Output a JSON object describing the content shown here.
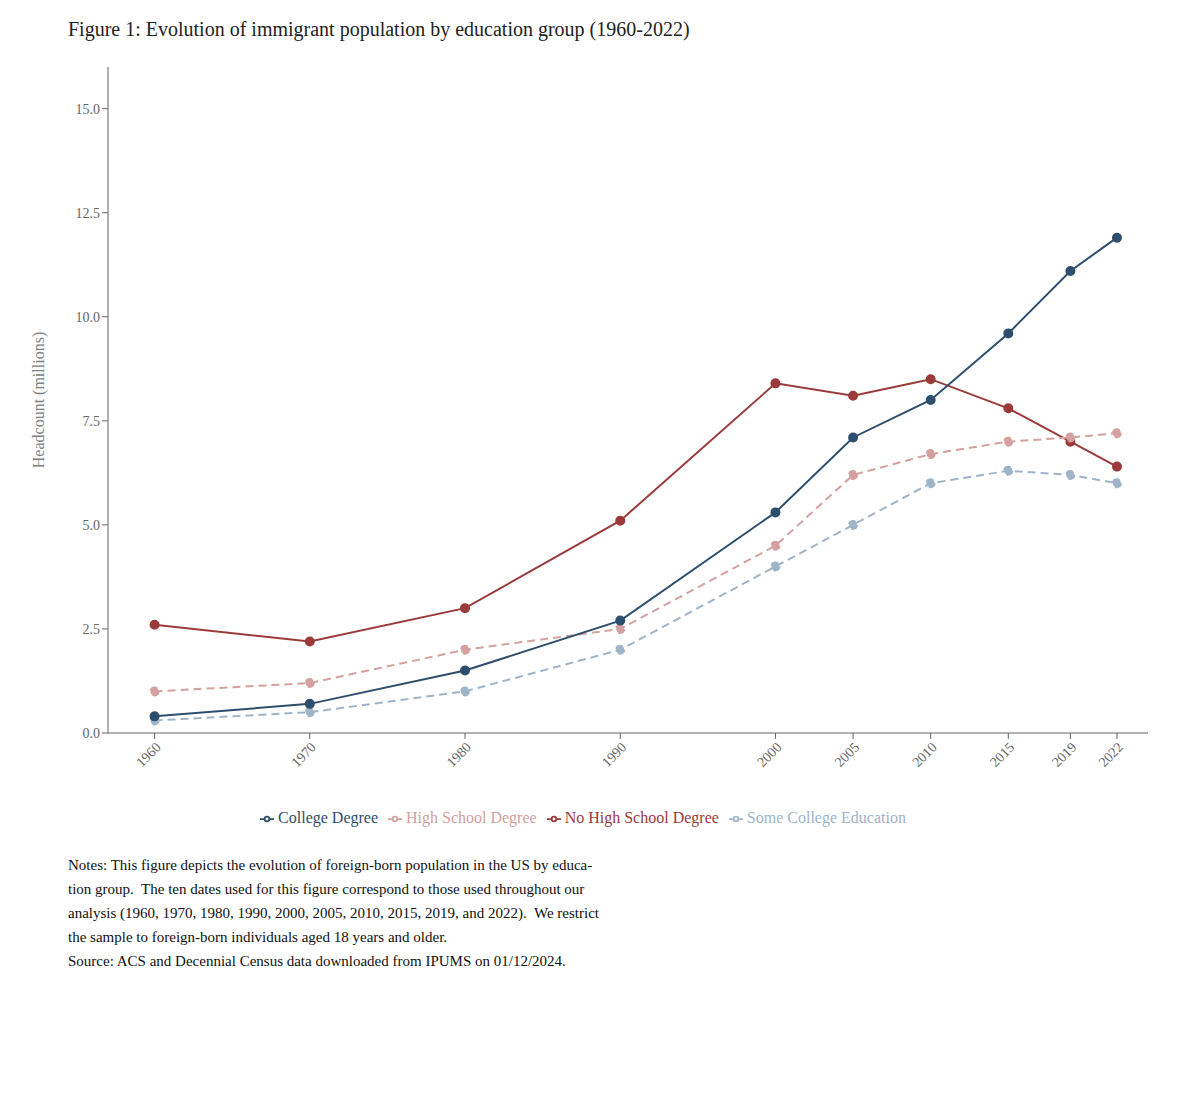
{
  "chart_data": {
    "type": "line",
    "title": "Figure 1: Evolution of immigrant population by education group (1960-2022)",
    "x": [
      1960,
      1970,
      1980,
      1990,
      2000,
      2005,
      2010,
      2015,
      2019,
      2022
    ],
    "xlim": [
      1957,
      2024
    ],
    "xticks": [
      1960,
      1970,
      1980,
      1990,
      2000,
      2005,
      2010,
      2015,
      2019,
      2022
    ],
    "y_label": "Headcount (millions)",
    "ylim": [
      0,
      16
    ],
    "yticks": [
      {
        "value": 0,
        "label": "0.0"
      },
      2.5,
      {
        "value": 5,
        "label": "5.0"
      },
      7.5,
      {
        "value": 10,
        "label": "10.0"
      },
      12.5,
      {
        "value": 15,
        "label": "15.0"
      }
    ],
    "grid": false,
    "legend": "bottom",
    "series": [
      {
        "name": "No High School Degree",
        "color": "#9B3A3A",
        "marker": "circle",
        "line_style": "solid",
        "values": [
          2.6,
          2.2,
          3.0,
          5.1,
          8.4,
          8.1,
          8.5,
          7.8,
          7.0,
          6.4
        ]
      },
      {
        "name": "High School Degree",
        "color": "#D4A0A0",
        "marker": "circle",
        "line_style": "dashed",
        "values": [
          1.0,
          1.2,
          2.0,
          2.5,
          4.5,
          6.2,
          6.7,
          7.0,
          7.1,
          7.2
        ]
      },
      {
        "name": "Some College Education",
        "color": "#A0B4C8",
        "marker": "circle",
        "line_style": "dashed",
        "values": [
          0.3,
          0.5,
          1.0,
          2.0,
          4.0,
          5.0,
          6.0,
          6.3,
          6.2,
          6.0
        ]
      },
      {
        "name": "College Degree",
        "color": "#2E4E6E",
        "marker": "circle",
        "line_style": "solid",
        "values": [
          0.4,
          0.7,
          1.5,
          2.7,
          5.3,
          7.1,
          8.0,
          9.6,
          11.1,
          11.9
        ]
      }
    ],
    "annotations": [
      "Notes: This figure depicts the evolution of foreign-born population in the US by educa-",
      "tion group.  The ten dates used for this figure correspond to those used throughout our",
      "analysis (1960, 1970, 1980, 1990, 2000, 2005, 2010, 2015, 2019, and 2022).  We restrict",
      "the sample to foreign-born individuals aged 18 years and older.",
      "Source: ACS and Decennial Census data downloaded from IPUMS on 01/12/2024."
    ]
  }
}
